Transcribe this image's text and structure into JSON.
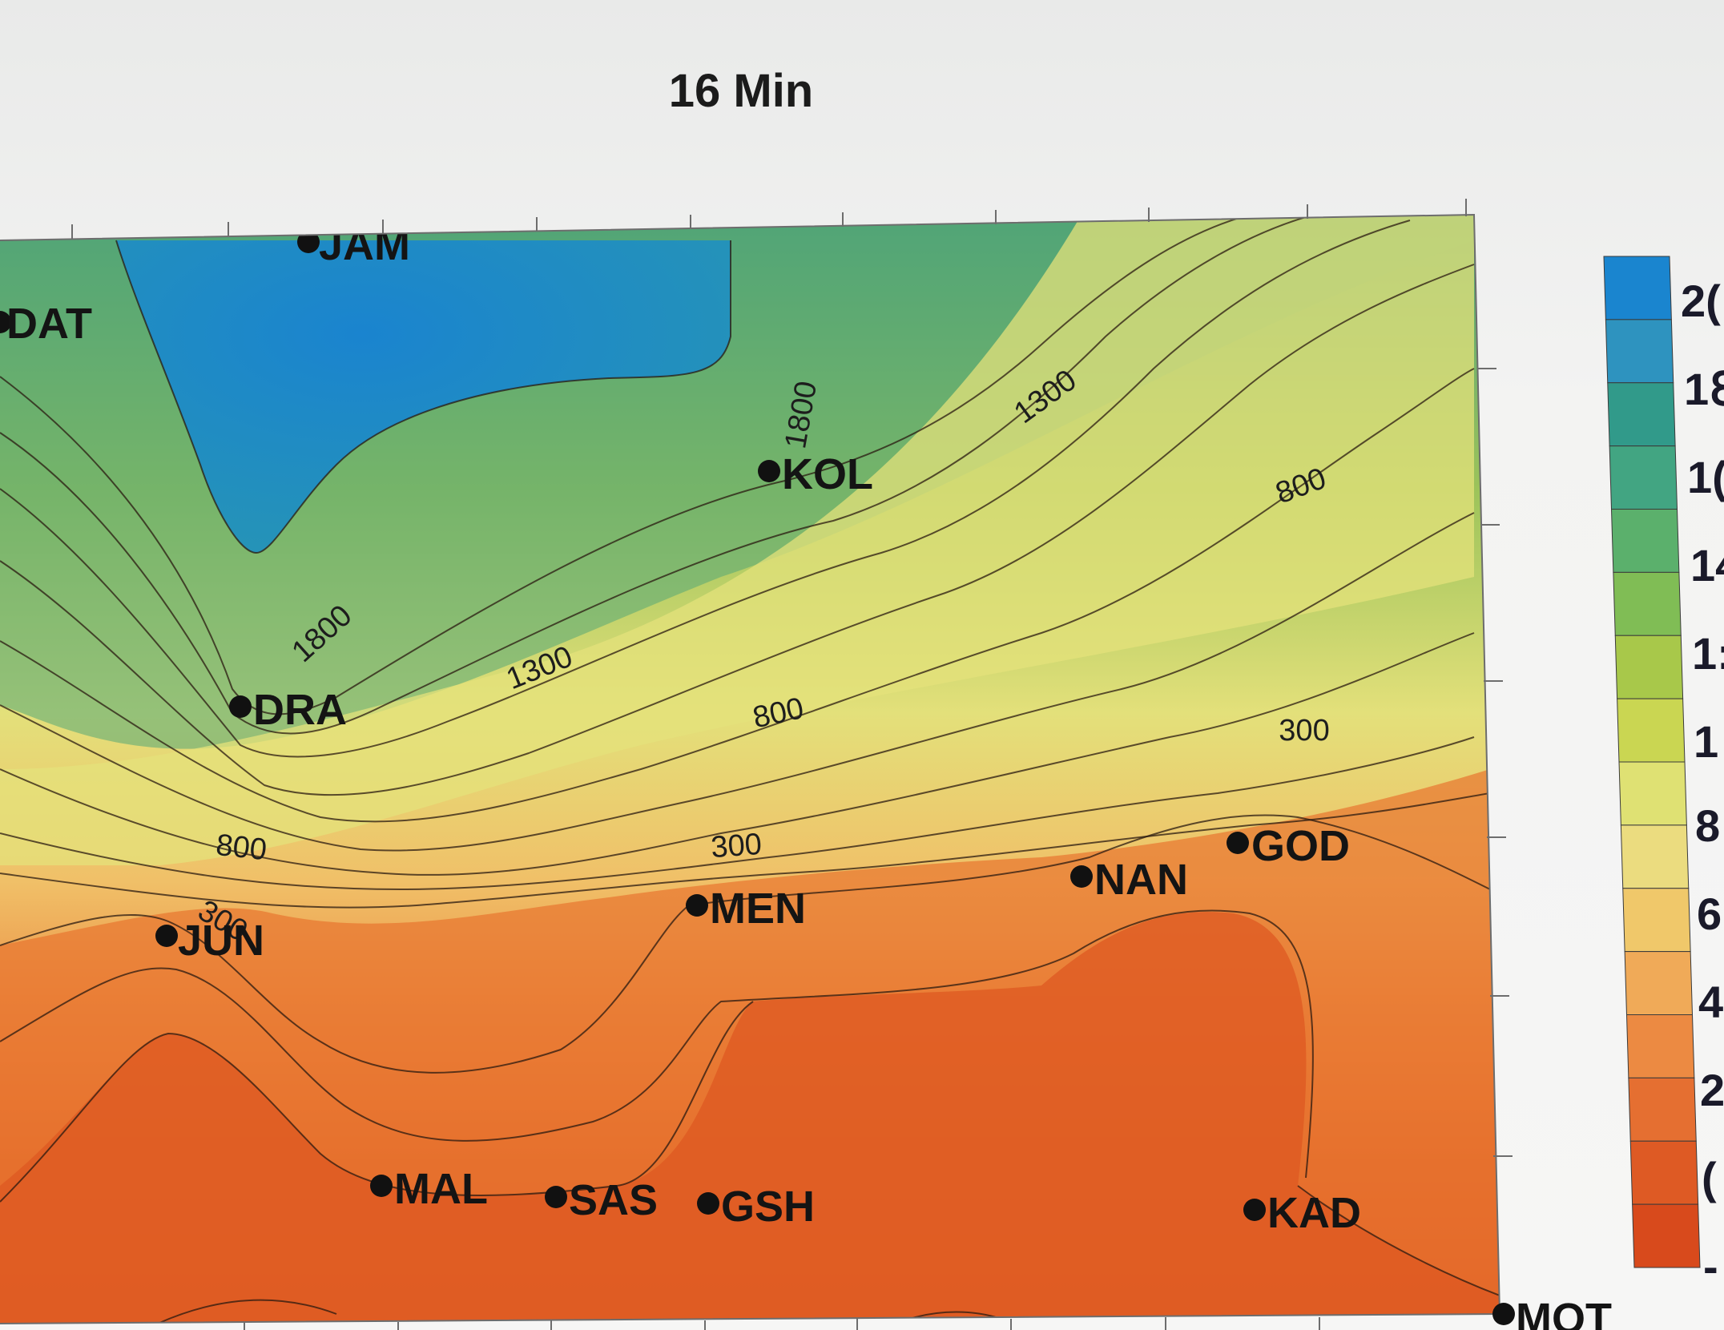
{
  "chart_data": {
    "type": "contour",
    "title": "16 Min",
    "xlabel": "",
    "ylabel": "",
    "contour_labels": [
      "1800",
      "1300",
      "800",
      "300",
      "1800",
      "1300",
      "800",
      "800",
      "300",
      "300"
    ],
    "stations": [
      {
        "name": "JAM"
      },
      {
        "name": "DAT"
      },
      {
        "name": "KOL"
      },
      {
        "name": "DRA"
      },
      {
        "name": "JUN"
      },
      {
        "name": "MEN"
      },
      {
        "name": "NAN"
      },
      {
        "name": "GOD"
      },
      {
        "name": "MAL"
      },
      {
        "name": "SAS"
      },
      {
        "name": "GSH"
      },
      {
        "name": "KAD"
      },
      {
        "name": "MOT"
      }
    ],
    "colorbar": {
      "tick_labels": [
        "2(",
        "1ℇ",
        "1(",
        "14",
        "1:",
        "1",
        "8",
        "6",
        "4",
        "2",
        "(",
        "-"
      ],
      "colors": [
        "#1a85cf",
        "#2e93bf",
        "#319a8a",
        "#42a582",
        "#5bb06c",
        "#80bd55",
        "#a8c84a",
        "#cad652",
        "#dfe173",
        "#ebdc7f",
        "#f0c86a",
        "#f0aa58",
        "#ec8a42",
        "#e56f31",
        "#de5a24",
        "#d84a1c"
      ]
    },
    "legend_position": "right"
  }
}
